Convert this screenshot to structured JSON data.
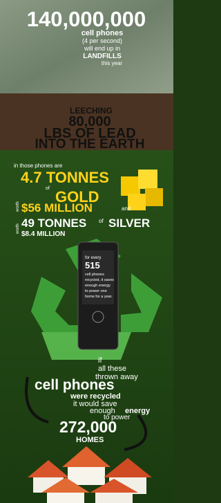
{
  "landfill": {
    "count": "140,000,000",
    "lines": [
      "cell phones",
      "(4 per second)",
      "will end up in",
      "LANDFILLS",
      "this year"
    ]
  },
  "lead": {
    "lines": [
      "LEECHING",
      "80,000",
      "LBS OF LEAD",
      "INTO THE EARTH"
    ]
  },
  "metals": {
    "intro": "in those phones are",
    "gold_amount": "4.7 TONNES",
    "gold_of": "of",
    "gold": "GOLD",
    "gold_worth_label": "worth",
    "gold_worth": "$56 MILLION",
    "and": "and",
    "silver_worth_label": "worth",
    "silver_amount": "49 TONNES",
    "silver_of": "of",
    "silver": "SILVER",
    "silver_worth": "$8.4 MILLION"
  },
  "phone_screen": {
    "intro": "for every",
    "count": "515",
    "lines": [
      "cell phones",
      "recycled, it saves",
      "enough energy",
      "to power one",
      "home for a year."
    ]
  },
  "recycle": {
    "lines": [
      "if",
      "all these",
      "thrown away"
    ],
    "phones": "cell phones",
    "recycled": "were recycled",
    "save": "it would save",
    "enough": "enough",
    "energy": "energy",
    "power": "to power",
    "homes_count": "272,000",
    "homes": "HOMES"
  }
}
